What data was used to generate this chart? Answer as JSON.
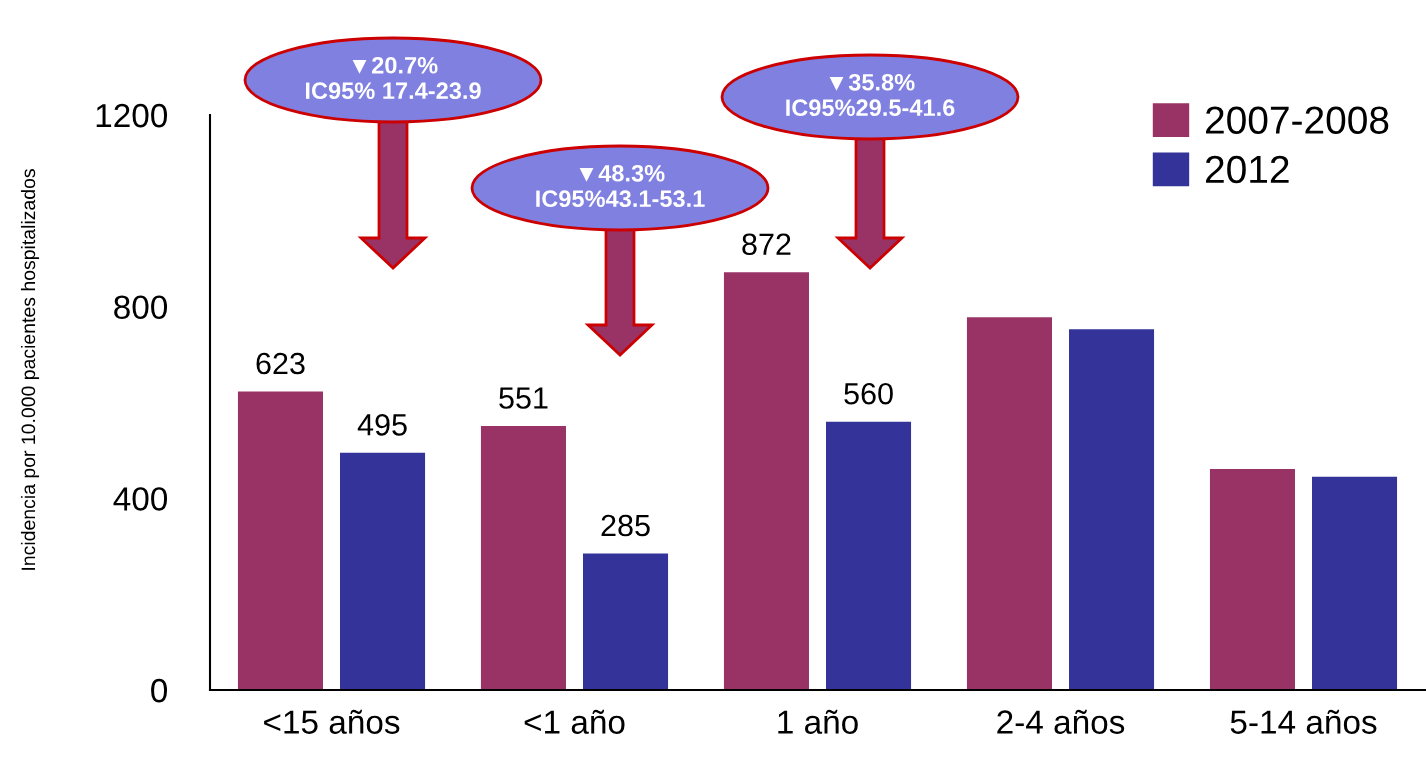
{
  "chart_data": {
    "type": "bar",
    "ylabel": "Incidencia por 10.000 pacientes hospitalizados",
    "categories": [
      "<15 años",
      "<1 año",
      "1 año",
      "2-4 años",
      "5-14 años"
    ],
    "series": [
      {
        "name": "2007-2008",
        "color": "#993366",
        "values": [
          623,
          551,
          872,
          778,
          461
        ],
        "value_labels": [
          "623",
          "551",
          "872",
          null,
          null
        ]
      },
      {
        "name": "2012",
        "color": "#333399",
        "values": [
          495,
          285,
          560,
          753,
          445
        ],
        "value_labels": [
          "495",
          "285",
          "560",
          null,
          null
        ]
      }
    ],
    "ylim": [
      0,
      1200
    ],
    "yticks": [
      0,
      400,
      800,
      1200
    ],
    "grid": false,
    "legend": "top right",
    "annotations": [
      "▼20.7%\nIC95% 17.4-23.9",
      "▼48.3%\nIC95%43.1-53.1",
      "▼35.8%\nIC95%29.5-41.6"
    ]
  }
}
